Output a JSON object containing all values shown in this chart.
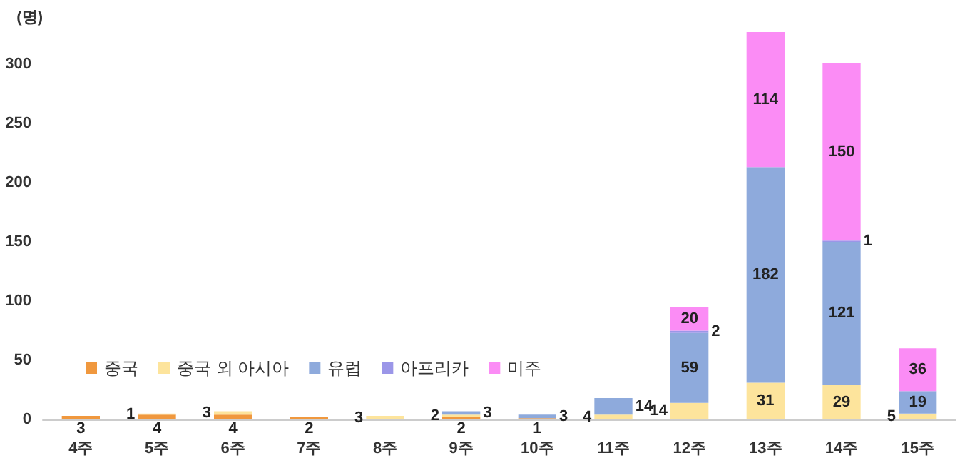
{
  "chart_data": {
    "type": "bar",
    "stacked": true,
    "ylabel": "(명)",
    "categories": [
      "4주",
      "5주",
      "6주",
      "7주",
      "8주",
      "9주",
      "10주",
      "11주",
      "12주",
      "13주",
      "14주",
      "15주"
    ],
    "series": [
      {
        "name": "중국",
        "color": "#f0983e",
        "values": [
          3,
          4,
          4,
          2,
          null,
          2,
          1,
          null,
          null,
          null,
          null,
          null
        ]
      },
      {
        "name": "중국 외 아시아",
        "color": "#fde49c",
        "values": [
          null,
          1,
          3,
          null,
          3,
          2,
          null,
          4,
          14,
          31,
          29,
          5
        ]
      },
      {
        "name": "유럽",
        "color": "#8eaadc",
        "values": [
          null,
          null,
          null,
          null,
          null,
          3,
          3,
          14,
          59,
          182,
          121,
          19
        ]
      },
      {
        "name": "아프리카",
        "color": "#9b96e8",
        "values": [
          null,
          null,
          null,
          null,
          null,
          null,
          null,
          null,
          2,
          null,
          1,
          null
        ]
      },
      {
        "name": "미주",
        "color": "#fb8cf5",
        "values": [
          null,
          null,
          null,
          null,
          null,
          null,
          null,
          null,
          20,
          114,
          150,
          36
        ]
      }
    ],
    "ylim": [
      0,
      330
    ],
    "yticks": [
      0,
      50,
      100,
      150,
      200,
      250,
      300
    ],
    "data_labels": true,
    "grid": false,
    "legend": "bottom left"
  }
}
